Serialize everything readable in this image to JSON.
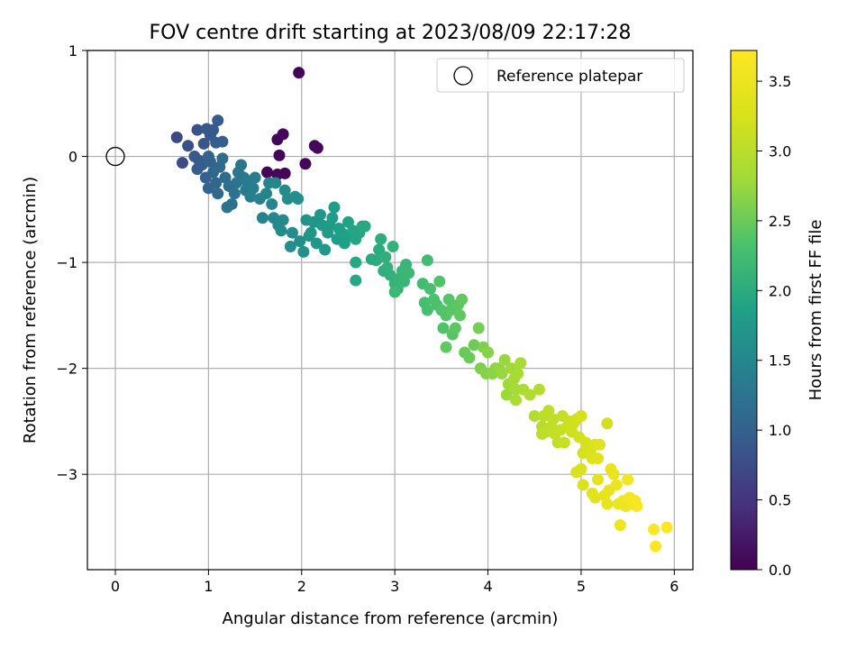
{
  "chart_data": {
    "type": "scatter",
    "title": "FOV centre drift starting at 2023/08/09 22:17:28",
    "xlabel": "Angular distance from reference (arcmin)",
    "ylabel": "Rotation from reference (arcmin)",
    "xlim": [
      -0.3,
      6.2
    ],
    "ylim": [
      -3.9,
      1.0
    ],
    "xticks": [
      0,
      1,
      2,
      3,
      4,
      5,
      6
    ],
    "xtick_labels": [
      "0",
      "1",
      "2",
      "3",
      "4",
      "5",
      "6"
    ],
    "yticks": [
      1,
      0,
      -1,
      -2,
      -3
    ],
    "ytick_labels": [
      "1",
      "0",
      "−1",
      "−2",
      "−3"
    ],
    "grid": true,
    "legend": {
      "position": "top-right",
      "entries": [
        "Reference platepar"
      ]
    },
    "reference_point": {
      "name": "Reference platepar",
      "x": 0,
      "y": 0,
      "marker": "hollow-circle"
    },
    "colorbar": {
      "label": "Hours from first FF file",
      "colormap": "viridis",
      "range": [
        0.0,
        3.72
      ],
      "ticks": [
        0.0,
        0.5,
        1.0,
        1.5,
        2.0,
        2.5,
        3.0,
        3.5
      ],
      "tick_labels": [
        "0.0",
        "0.5",
        "1.0",
        "1.5",
        "2.0",
        "2.5",
        "3.0",
        "3.5"
      ]
    },
    "series": [
      {
        "points_xyc": [
          [
            1.97,
            0.79,
            0.02
          ],
          [
            1.74,
            0.16,
            0.05
          ],
          [
            1.8,
            0.21,
            0.06
          ],
          [
            1.76,
            0.01,
            0.05
          ],
          [
            2.14,
            0.1,
            0.08
          ],
          [
            2.17,
            0.08,
            0.08
          ],
          [
            2.04,
            -0.07,
            0.06
          ],
          [
            1.63,
            -0.15,
            0.04
          ],
          [
            1.74,
            -0.17,
            0.05
          ],
          [
            1.82,
            -0.16,
            0.05
          ],
          [
            0.66,
            0.18,
            0.7
          ],
          [
            0.72,
            -0.06,
            0.75
          ],
          [
            0.78,
            0.1,
            0.8
          ],
          [
            0.88,
            0.25,
            0.82
          ],
          [
            0.95,
            0.12,
            0.85
          ],
          [
            0.98,
            0.26,
            0.88
          ],
          [
            1.02,
            0.2,
            0.9
          ],
          [
            1.05,
            0.25,
            0.9
          ],
          [
            1.1,
            0.34,
            0.92
          ],
          [
            1.08,
            0.13,
            0.95
          ],
          [
            1.15,
            0.14,
            0.95
          ],
          [
            0.9,
            -0.04,
            0.92
          ],
          [
            0.85,
            0.0,
            0.9
          ],
          [
            0.88,
            -0.12,
            0.93
          ],
          [
            0.93,
            -0.08,
            0.95
          ],
          [
            0.97,
            -0.2,
            1.0
          ],
          [
            1.0,
            0.0,
            1.0
          ],
          [
            1.02,
            -0.05,
            1.02
          ],
          [
            1.05,
            -0.15,
            1.05
          ],
          [
            1.0,
            -0.3,
            1.05
          ],
          [
            1.08,
            -0.25,
            1.08
          ],
          [
            1.1,
            -0.35,
            1.1
          ],
          [
            1.12,
            -0.1,
            1.1
          ],
          [
            1.15,
            -0.02,
            1.12
          ],
          [
            1.18,
            -0.2,
            1.15
          ],
          [
            1.22,
            -0.28,
            1.18
          ],
          [
            1.25,
            -0.45,
            1.2
          ],
          [
            1.28,
            -0.35,
            1.22
          ],
          [
            1.2,
            -0.48,
            1.22
          ],
          [
            1.3,
            -0.25,
            1.25
          ],
          [
            1.32,
            -0.15,
            1.28
          ],
          [
            1.35,
            -0.08,
            1.28
          ],
          [
            1.38,
            -0.2,
            1.3
          ],
          [
            1.4,
            -0.32,
            1.32
          ],
          [
            1.42,
            -0.25,
            1.35
          ],
          [
            1.45,
            -0.38,
            1.38
          ],
          [
            1.48,
            -0.3,
            1.4
          ],
          [
            1.5,
            -0.2,
            1.4
          ],
          [
            1.55,
            -0.4,
            1.42
          ],
          [
            1.58,
            -0.58,
            1.45
          ],
          [
            1.62,
            -0.35,
            1.45
          ],
          [
            1.65,
            -0.25,
            1.45
          ],
          [
            1.68,
            -0.45,
            1.48
          ],
          [
            1.7,
            -0.58,
            1.5
          ],
          [
            1.72,
            -0.25,
            1.5
          ],
          [
            1.75,
            -0.65,
            1.52
          ],
          [
            1.78,
            -0.7,
            1.55
          ],
          [
            1.8,
            -0.6,
            1.55
          ],
          [
            1.82,
            -0.32,
            1.55
          ],
          [
            1.85,
            -0.4,
            1.58
          ],
          [
            1.88,
            -0.85,
            1.6
          ],
          [
            1.9,
            -0.72,
            1.6
          ],
          [
            1.93,
            -0.38,
            1.6
          ],
          [
            1.96,
            -0.4,
            1.62
          ],
          [
            1.98,
            -0.8,
            1.62
          ],
          [
            2.02,
            -0.9,
            1.65
          ],
          [
            2.05,
            -0.6,
            1.65
          ],
          [
            2.08,
            -0.75,
            1.68
          ],
          [
            2.1,
            -0.72,
            1.7
          ],
          [
            2.13,
            -0.62,
            1.7
          ],
          [
            2.16,
            -0.82,
            1.72
          ],
          [
            2.2,
            -0.55,
            1.72
          ],
          [
            2.22,
            -0.65,
            1.75
          ],
          [
            2.25,
            -0.88,
            1.75
          ],
          [
            2.28,
            -0.72,
            1.78
          ],
          [
            2.3,
            -0.65,
            1.78
          ],
          [
            2.33,
            -0.58,
            1.8
          ],
          [
            2.35,
            -0.48,
            1.8
          ],
          [
            2.38,
            -0.78,
            1.82
          ],
          [
            2.4,
            -0.68,
            1.82
          ],
          [
            2.43,
            -0.72,
            1.85
          ],
          [
            2.46,
            -0.82,
            1.85
          ],
          [
            2.5,
            -0.62,
            1.88
          ],
          [
            2.52,
            -0.75,
            1.88
          ],
          [
            2.55,
            -0.7,
            1.9
          ],
          [
            2.58,
            -0.78,
            1.9
          ],
          [
            2.62,
            -0.72,
            1.92
          ],
          [
            2.65,
            -0.66,
            1.95
          ],
          [
            2.68,
            -0.66,
            1.95
          ],
          [
            2.58,
            -1.0,
            1.95
          ],
          [
            2.58,
            -1.17,
            1.95
          ],
          [
            2.75,
            -0.97,
            1.98
          ],
          [
            2.8,
            -0.98,
            2.0
          ],
          [
            2.83,
            -0.88,
            2.0
          ],
          [
            2.85,
            -0.78,
            2.02
          ],
          [
            2.88,
            -1.08,
            2.05
          ],
          [
            2.9,
            -0.95,
            2.05
          ],
          [
            2.92,
            -1.05,
            2.08
          ],
          [
            2.95,
            -1.12,
            2.08
          ],
          [
            2.98,
            -0.85,
            2.1
          ],
          [
            3.0,
            -1.2,
            2.1
          ],
          [
            3.03,
            -1.25,
            2.12
          ],
          [
            3.05,
            -1.15,
            2.12
          ],
          [
            3.08,
            -1.08,
            2.15
          ],
          [
            3.1,
            -1.18,
            2.15
          ],
          [
            3.12,
            -1.02,
            2.15
          ],
          [
            3.15,
            -1.1,
            2.18
          ],
          [
            3.0,
            -1.28,
            2.18
          ],
          [
            3.35,
            -0.98,
            2.25
          ],
          [
            3.3,
            -1.2,
            2.25
          ],
          [
            3.32,
            -1.38,
            2.28
          ],
          [
            3.35,
            -1.45,
            2.3
          ],
          [
            3.38,
            -1.25,
            2.3
          ],
          [
            3.42,
            -1.35,
            2.32
          ],
          [
            3.45,
            -1.4,
            2.32
          ],
          [
            3.48,
            -1.18,
            2.35
          ],
          [
            3.5,
            -1.45,
            2.35
          ],
          [
            3.52,
            -1.62,
            2.35
          ],
          [
            3.55,
            -1.5,
            2.38
          ],
          [
            3.58,
            -1.35,
            2.38
          ],
          [
            3.6,
            -1.45,
            2.4
          ],
          [
            3.62,
            -1.68,
            2.4
          ],
          [
            3.65,
            -1.62,
            2.42
          ],
          [
            3.68,
            -1.4,
            2.42
          ],
          [
            3.7,
            -1.5,
            2.45
          ],
          [
            3.72,
            -1.35,
            2.45
          ],
          [
            3.55,
            -1.8,
            2.45
          ],
          [
            3.75,
            -1.85,
            2.5
          ],
          [
            3.8,
            -1.9,
            2.5
          ],
          [
            3.85,
            -1.78,
            2.52
          ],
          [
            3.9,
            -1.62,
            2.55
          ],
          [
            3.92,
            -2.0,
            2.6
          ],
          [
            3.95,
            -1.8,
            2.6
          ],
          [
            3.98,
            -2.05,
            2.65
          ],
          [
            4.0,
            -1.85,
            2.65
          ],
          [
            4.05,
            -2.05,
            2.68
          ],
          [
            4.08,
            -2.0,
            2.7
          ],
          [
            4.12,
            -2.0,
            2.72
          ],
          [
            4.15,
            -2.05,
            2.75
          ],
          [
            4.18,
            -1.92,
            2.75
          ],
          [
            4.2,
            -2.25,
            2.78
          ],
          [
            4.22,
            -2.15,
            2.8
          ],
          [
            4.25,
            -2.0,
            2.8
          ],
          [
            4.28,
            -2.1,
            2.82
          ],
          [
            4.3,
            -2.2,
            2.82
          ],
          [
            4.32,
            -2.05,
            2.85
          ],
          [
            4.35,
            -1.95,
            2.85
          ],
          [
            4.38,
            -2.2,
            2.88
          ],
          [
            4.3,
            -2.3,
            2.88
          ],
          [
            4.45,
            -2.25,
            2.92
          ],
          [
            4.5,
            -2.45,
            2.95
          ],
          [
            4.55,
            -2.2,
            2.95
          ],
          [
            4.58,
            -2.55,
            2.98
          ],
          [
            4.6,
            -2.45,
            3.0
          ],
          [
            4.62,
            -2.6,
            3.0
          ],
          [
            4.58,
            -2.62,
            3.02
          ],
          [
            4.65,
            -2.4,
            3.02
          ],
          [
            4.68,
            -2.55,
            3.05
          ],
          [
            4.7,
            -2.48,
            3.05
          ],
          [
            4.72,
            -2.62,
            3.08
          ],
          [
            4.75,
            -2.7,
            3.08
          ],
          [
            4.78,
            -2.58,
            3.1
          ],
          [
            4.8,
            -2.45,
            3.1
          ],
          [
            4.82,
            -2.7,
            3.12
          ],
          [
            4.85,
            -2.55,
            3.15
          ],
          [
            4.88,
            -2.5,
            3.15
          ],
          [
            4.9,
            -2.6,
            3.18
          ],
          [
            4.92,
            -2.52,
            3.18
          ],
          [
            4.95,
            -2.48,
            3.2
          ],
          [
            4.98,
            -2.65,
            3.2
          ],
          [
            5.0,
            -2.45,
            3.22
          ],
          [
            5.02,
            -2.8,
            3.22
          ],
          [
            5.05,
            -2.7,
            3.25
          ],
          [
            5.0,
            -2.95,
            3.28
          ],
          [
            4.95,
            -2.98,
            3.28
          ],
          [
            5.02,
            -3.1,
            3.28
          ],
          [
            5.1,
            -2.78,
            3.3
          ],
          [
            5.12,
            -2.85,
            3.32
          ],
          [
            5.15,
            -2.72,
            3.32
          ],
          [
            5.18,
            -2.85,
            3.35
          ],
          [
            5.2,
            -2.72,
            3.35
          ],
          [
            5.12,
            -3.18,
            3.38
          ],
          [
            5.15,
            -3.22,
            3.38
          ],
          [
            5.18,
            -3.05,
            3.4
          ],
          [
            5.28,
            -2.52,
            3.2
          ],
          [
            5.25,
            -3.2,
            3.42
          ],
          [
            5.28,
            -3.28,
            3.45
          ],
          [
            5.3,
            -3.15,
            3.45
          ],
          [
            5.32,
            -2.95,
            3.45
          ],
          [
            5.35,
            -3.0,
            3.48
          ],
          [
            5.38,
            -3.1,
            3.5
          ],
          [
            5.4,
            -3.28,
            3.5
          ],
          [
            5.42,
            -3.48,
            3.52
          ],
          [
            5.45,
            -3.25,
            3.55
          ],
          [
            5.48,
            -3.3,
            3.55
          ],
          [
            5.5,
            -3.05,
            3.58
          ],
          [
            5.52,
            -3.22,
            3.6
          ],
          [
            5.55,
            -3.28,
            3.62
          ],
          [
            5.58,
            -3.25,
            3.65
          ],
          [
            5.6,
            -3.3,
            3.65
          ],
          [
            5.78,
            -3.52,
            3.7
          ],
          [
            5.8,
            -3.68,
            3.7
          ],
          [
            5.92,
            -3.5,
            3.72
          ]
        ]
      }
    ]
  }
}
